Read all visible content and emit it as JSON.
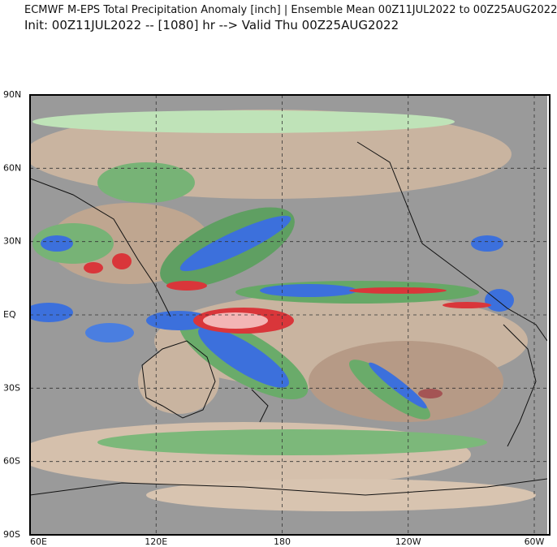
{
  "header": {
    "title": "ECMWF M-EPS Total Precipitation Anomaly [inch] | Ensemble Mean 00Z11JUL2022 to 00Z25AUG2022",
    "subtitle": "Init: 00Z11JUL2022 -- [1080] hr --> Valid Thu 00Z25AUG2022"
  },
  "map": {
    "lat_labels": [
      "90N",
      "60N",
      "30N",
      "EQ",
      "30S",
      "60S",
      "90S"
    ],
    "lon_labels": [
      "60E",
      "120E",
      "180",
      "120W",
      "60W"
    ]
  }
}
